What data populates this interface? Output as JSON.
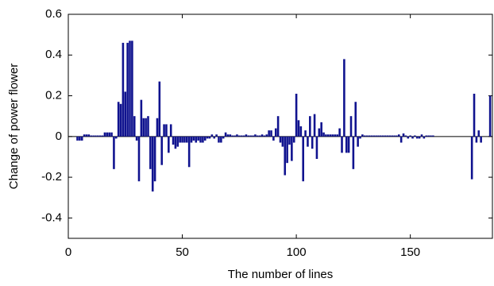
{
  "chart_data": {
    "type": "bar",
    "x_label": "The number of lines",
    "y_label": "Change of power flower",
    "color": "#10138f",
    "xlim": [
      0,
      186
    ],
    "xticks": [
      0,
      50,
      100,
      150
    ],
    "ylim": [
      -0.5,
      0.6
    ],
    "yticks": [
      -0.4,
      -0.2,
      0,
      0.2,
      0.4,
      0.6
    ],
    "x": [
      1,
      2,
      3,
      4,
      5,
      6,
      7,
      8,
      9,
      10,
      11,
      12,
      13,
      14,
      15,
      16,
      17,
      18,
      19,
      20,
      21,
      22,
      23,
      24,
      25,
      26,
      27,
      28,
      29,
      30,
      31,
      32,
      33,
      34,
      35,
      36,
      37,
      38,
      39,
      40,
      41,
      42,
      43,
      44,
      45,
      46,
      47,
      48,
      49,
      50,
      51,
      52,
      53,
      54,
      55,
      56,
      57,
      58,
      59,
      60,
      61,
      62,
      63,
      64,
      65,
      66,
      67,
      68,
      69,
      70,
      71,
      72,
      73,
      74,
      75,
      76,
      77,
      78,
      79,
      80,
      81,
      82,
      83,
      84,
      85,
      86,
      87,
      88,
      89,
      90,
      91,
      92,
      93,
      94,
      95,
      96,
      97,
      98,
      99,
      100,
      101,
      102,
      103,
      104,
      105,
      106,
      107,
      108,
      109,
      110,
      111,
      112,
      113,
      114,
      115,
      116,
      117,
      118,
      119,
      120,
      121,
      122,
      123,
      124,
      125,
      126,
      127,
      128,
      129,
      130,
      131,
      132,
      133,
      134,
      135,
      136,
      137,
      138,
      139,
      140,
      141,
      142,
      143,
      144,
      145,
      146,
      147,
      148,
      149,
      150,
      151,
      152,
      153,
      154,
      155,
      156,
      157,
      158,
      159,
      160,
      161,
      162,
      163,
      164,
      165,
      166,
      167,
      168,
      169,
      170,
      171,
      172,
      173,
      174,
      175,
      176,
      177,
      178,
      179,
      180,
      181,
      182,
      183,
      184,
      185
    ],
    "values": [
      0,
      0,
      0,
      -0.02,
      -0.02,
      -0.02,
      0.01,
      0.01,
      0.01,
      0.005,
      0.005,
      0.005,
      0.005,
      0.005,
      0.005,
      0.02,
      0.02,
      0.02,
      0.02,
      -0.16,
      -0.01,
      0.17,
      0.16,
      0.46,
      0.22,
      0.46,
      0.47,
      0.47,
      0.1,
      -0.02,
      -0.22,
      0.18,
      0.09,
      0.09,
      0.1,
      -0.16,
      -0.27,
      -0.22,
      0.09,
      0.27,
      -0.14,
      0.06,
      0.06,
      -0.08,
      0.06,
      -0.04,
      -0.06,
      -0.05,
      -0.03,
      -0.03,
      -0.03,
      -0.03,
      -0.15,
      -0.03,
      -0.02,
      -0.03,
      -0.02,
      -0.03,
      -0.03,
      -0.02,
      -0.01,
      -0.01,
      0.01,
      -0.01,
      0.01,
      -0.03,
      -0.03,
      -0.01,
      0.02,
      0.01,
      0.01,
      0.005,
      0.005,
      0.01,
      0.005,
      0.005,
      0.005,
      0.01,
      0.005,
      0.005,
      0.005,
      0.01,
      0.005,
      0.005,
      0.01,
      0.005,
      0.01,
      0.03,
      0.03,
      -0.02,
      0.04,
      0.1,
      -0.03,
      -0.05,
      -0.19,
      -0.13,
      -0.04,
      -0.12,
      -0.03,
      0.21,
      0.08,
      0.05,
      -0.22,
      0.03,
      -0.05,
      0.1,
      -0.06,
      0.11,
      -0.11,
      0.04,
      0.07,
      0.02,
      0.01,
      0.01,
      0.01,
      0.01,
      0.01,
      0.01,
      0.04,
      -0.08,
      0.38,
      -0.08,
      -0.08,
      0.1,
      -0.16,
      0.17,
      -0.05,
      -0.01,
      0.01,
      0.005,
      0.005,
      0.005,
      0.005,
      0.005,
      0.005,
      0.005,
      0.005,
      0.005,
      0.005,
      0.005,
      0.005,
      0.005,
      0.005,
      0.005,
      0.01,
      -0.03,
      0.015,
      0.005,
      -0.01,
      0.005,
      -0.01,
      0.005,
      -0.01,
      -0.01,
      0.01,
      -0.01,
      0.005,
      0.005,
      0.005,
      0.005,
      0,
      0,
      0,
      0,
      0,
      0,
      0,
      0,
      0,
      0,
      0,
      0,
      0,
      0,
      0,
      0,
      -0.21,
      0.21,
      -0.03,
      0.03,
      -0.03,
      0,
      0,
      0,
      0.2
    ]
  }
}
